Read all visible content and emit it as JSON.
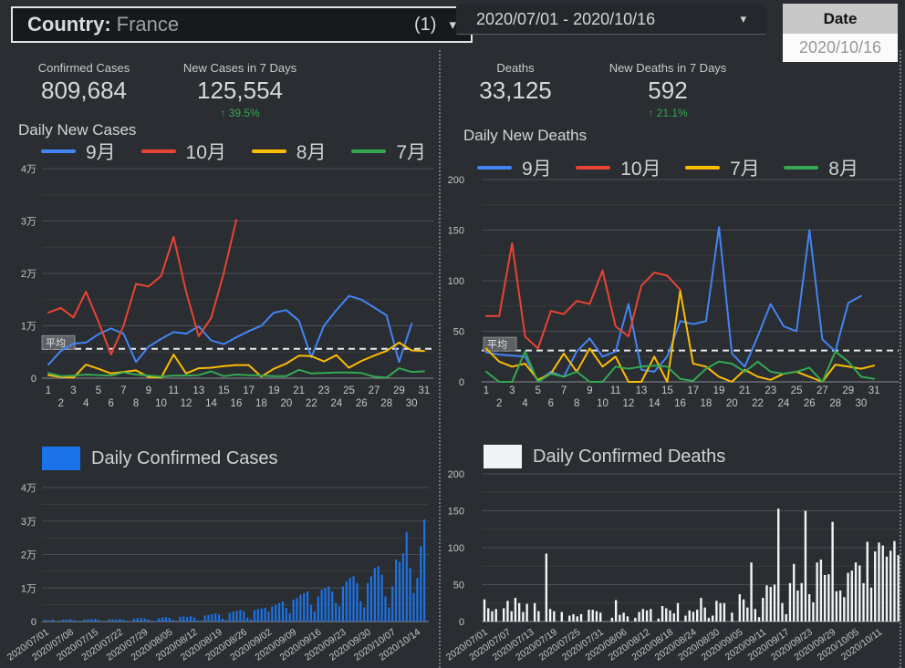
{
  "colors": {
    "blue": "#4285f4",
    "red": "#ea4335",
    "yellow": "#fbbc04",
    "green": "#34a853",
    "bar_blue": "#1a73e8",
    "bar_white": "#f1f3f4",
    "positive_change_green": "#34a853"
  },
  "header": {
    "country_control": {
      "label": "Country",
      "separator": ":",
      "value": "France",
      "count": "(1)",
      "caret": "▾"
    },
    "date_range_control": {
      "value": "2020/07/01 - 2020/10/16",
      "caret": "▾"
    },
    "date_table": {
      "header": "Date",
      "value": "2020/10/16"
    }
  },
  "stats": {
    "confirmed_cases": {
      "label": "Confirmed Cases",
      "value": "809,684"
    },
    "new_cases_7d": {
      "label": "New Cases in 7 Days",
      "value": "125,554",
      "change": "↑ 39.5%"
    },
    "deaths": {
      "label": "Deaths",
      "value": "33,125"
    },
    "new_deaths_7d": {
      "label": "New Deaths in 7 Days",
      "value": "592",
      "change": "↑ 21.1%"
    }
  },
  "chart_data": [
    {
      "id": "daily-new-cases",
      "type": "line",
      "title": "Daily New Cases",
      "x_days": 31,
      "ylim": [
        0,
        40000
      ],
      "yticks": {
        "values": [
          40000,
          30000,
          20000,
          10000,
          0
        ],
        "labels": [
          "4万",
          "3万",
          "2万",
          "1万",
          "0"
        ]
      },
      "grid": true,
      "legend_position": "top",
      "average": {
        "value": 5600,
        "label": "平均"
      },
      "series": [
        {
          "name": "9月",
          "color": "#4285f4",
          "values": [
            2600,
            5200,
            6600,
            6800,
            8400,
            9500,
            8500,
            3100,
            6000,
            7500,
            8800,
            8500,
            9900,
            7200,
            6500,
            7800,
            9000,
            10000,
            12500,
            13000,
            11000,
            4000,
            10000,
            13000,
            15700,
            15000,
            13500,
            12000,
            3100,
            10400
          ]
        },
        {
          "name": "10月",
          "color": "#ea4335",
          "values": [
            12500,
            13400,
            11600,
            16500,
            10800,
            4500,
            10000,
            18000,
            17500,
            19500,
            27000,
            16500,
            8000,
            11500,
            20000,
            30200
          ]
        },
        {
          "name": "8月",
          "color": "#fbbc04",
          "values": [
            600,
            200,
            100,
            2600,
            1800,
            900,
            1200,
            1500,
            200,
            100,
            4500,
            900,
            1900,
            2000,
            2300,
            2500,
            2500,
            300,
            1800,
            2800,
            4300,
            4200,
            3200,
            4400,
            2000,
            3300,
            4300,
            5200,
            6800,
            5300,
            5200
          ]
        },
        {
          "name": "7月",
          "color": "#34a853",
          "values": [
            1000,
            400,
            500,
            700,
            600,
            500,
            1100,
            700,
            500,
            300,
            500,
            500,
            600,
            1300,
            400,
            700,
            600,
            500,
            400,
            400,
            1600,
            900,
            1000,
            1100,
            1100,
            1000,
            300,
            100,
            1900,
            1200,
            1300
          ]
        }
      ]
    },
    {
      "id": "daily-new-deaths",
      "type": "line",
      "title": "Daily New Deaths",
      "x_days": 31,
      "ylim": [
        0,
        200
      ],
      "yticks": {
        "values": [
          200,
          150,
          100,
          50,
          0
        ],
        "labels": [
          "200",
          "150",
          "100",
          "50",
          "0"
        ]
      },
      "grid": true,
      "legend_position": "top",
      "average": {
        "value": 31,
        "label": "平均"
      },
      "series": [
        {
          "name": "9月",
          "color": "#4285f4",
          "values": [
            29,
            27,
            26,
            25,
            0,
            10,
            5,
            30,
            43,
            25,
            30,
            77,
            12,
            10,
            25,
            60,
            57,
            60,
            153,
            28,
            15,
            45,
            77,
            55,
            50,
            150,
            42,
            30,
            78,
            85
          ]
        },
        {
          "name": "10月",
          "color": "#ea4335",
          "values": [
            65,
            65,
            137,
            45,
            33,
            70,
            67,
            80,
            77,
            110,
            55,
            45,
            95,
            108,
            105,
            91
          ]
        },
        {
          "name": "7月",
          "color": "#fbbc04",
          "values": [
            33,
            20,
            15,
            18,
            2,
            8,
            28,
            10,
            33,
            15,
            25,
            0,
            0,
            25,
            0,
            90,
            18,
            15,
            5,
            0,
            12,
            5,
            2,
            8,
            10,
            5,
            0,
            17,
            15,
            13,
            16
          ]
        },
        {
          "name": "8月",
          "color": "#34a853",
          "values": [
            10,
            0,
            0,
            30,
            0,
            8,
            5,
            10,
            0,
            0,
            15,
            13,
            15,
            16,
            15,
            3,
            1,
            13,
            20,
            18,
            10,
            20,
            10,
            8,
            10,
            14,
            0,
            30,
            20,
            5,
            3
          ]
        }
      ]
    },
    {
      "id": "daily-confirmed-cases",
      "type": "bar",
      "title": "Daily Confirmed Cases",
      "color": "#1a73e8",
      "ylim": [
        0,
        40000
      ],
      "yticks": {
        "values": [
          40000,
          30000,
          20000,
          10000,
          0
        ],
        "labels": [
          "4万",
          "3万",
          "2万",
          "1万",
          "0"
        ]
      },
      "x_label_step": 7,
      "x_labels": [
        "2020/07/01",
        "2020/07/08",
        "2020/07/15",
        "2020/07/22",
        "2020/07/29",
        "2020/08/05",
        "2020/08/12",
        "2020/08/19",
        "2020/08/26",
        "2020/09/02",
        "2020/09/09",
        "2020/09/16",
        "2020/09/23",
        "2020/09/30",
        "2020/10/07",
        "2020/10/14"
      ],
      "values": [
        500,
        350,
        580,
        120,
        80,
        550,
        620,
        680,
        400,
        180,
        90,
        600,
        650,
        700,
        750,
        500,
        150,
        100,
        700,
        650,
        600,
        800,
        550,
        200,
        120,
        900,
        1000,
        1100,
        950,
        600,
        250,
        150,
        1000,
        1200,
        1300,
        1100,
        500,
        200,
        1400,
        1500,
        1300,
        1600,
        1200,
        300,
        250,
        1800,
        2000,
        2200,
        2400,
        2100,
        800,
        400,
        2600,
        3000,
        3200,
        3500,
        3000,
        1200,
        600,
        3400,
        3700,
        3900,
        4100,
        3000,
        4500,
        5000,
        5500,
        6000,
        4000,
        2500,
        6500,
        7000,
        8000,
        8500,
        9000,
        5000,
        3000,
        7500,
        9500,
        10000,
        10500,
        9000,
        5500,
        4500,
        10500,
        12000,
        13000,
        13500,
        11500,
        6000,
        4200,
        11500,
        13500,
        16000,
        16500,
        14000,
        7500,
        4200,
        10500,
        18500,
        17800,
        20300,
        26700,
        16000,
        8500,
        13000,
        22500,
        30500
      ]
    },
    {
      "id": "daily-confirmed-deaths",
      "type": "bar",
      "title": "Daily Confirmed Deaths",
      "color": "#f1f3f4",
      "ylim": [
        0,
        200
      ],
      "yticks": {
        "values": [
          200,
          150,
          100,
          50,
          0
        ],
        "labels": [
          "200",
          "150",
          "100",
          "50",
          "0"
        ]
      },
      "x_label_step": 6,
      "x_labels": [
        "2020/07/01",
        "2020/07/07",
        "2020/07/13",
        "2020/07/19",
        "2020/07/25",
        "2020/07/31",
        "2020/08/06",
        "2020/08/12",
        "2020/08/18",
        "2020/08/24",
        "2020/08/30",
        "2020/09/05",
        "2020/09/11",
        "2020/09/17",
        "2020/09/23",
        "2020/09/29",
        "2020/10/05",
        "2020/10/11"
      ],
      "values": [
        30,
        18,
        14,
        17,
        0,
        18,
        28,
        14,
        32,
        25,
        13,
        24,
        0,
        25,
        14,
        0,
        92,
        17,
        14,
        0,
        13,
        0,
        8,
        10,
        7,
        10,
        0,
        16,
        16,
        14,
        12,
        0,
        0,
        5,
        29,
        9,
        12,
        7,
        0,
        5,
        13,
        17,
        15,
        17,
        0,
        4,
        21,
        18,
        15,
        11,
        25,
        0,
        8,
        15,
        13,
        16,
        32,
        19,
        5,
        8,
        28,
        25,
        25,
        0,
        12,
        0,
        37,
        30,
        19,
        80,
        17,
        6,
        32,
        49,
        47,
        50,
        153,
        25,
        10,
        52,
        78,
        42,
        52,
        150,
        37,
        26,
        80,
        84,
        63,
        64,
        135,
        41,
        42,
        33,
        66,
        69,
        80,
        76,
        52,
        108,
        46,
        95,
        107,
        103,
        88,
        96,
        109,
        90
      ]
    }
  ]
}
